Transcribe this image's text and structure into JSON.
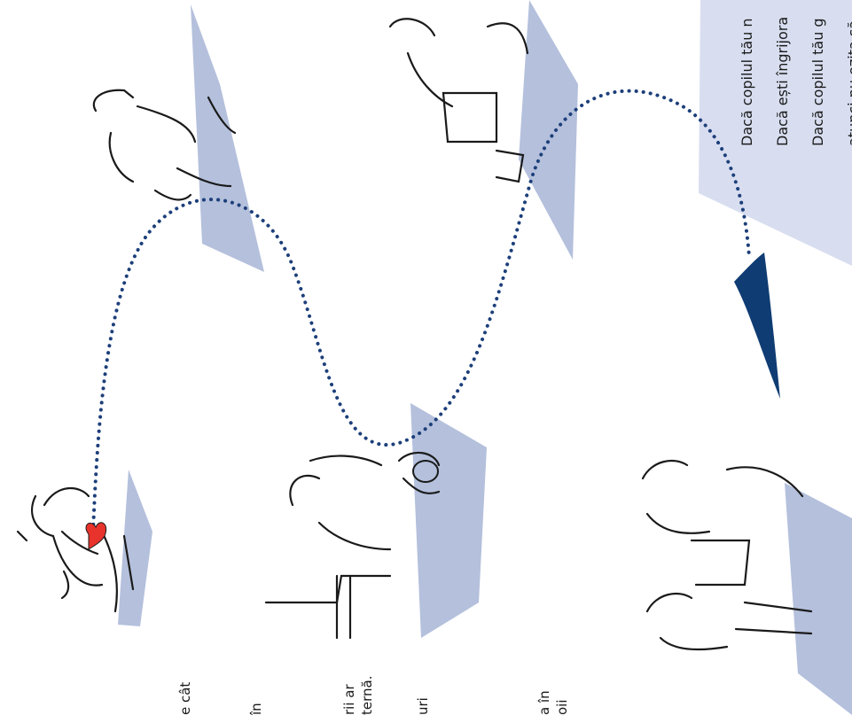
{
  "left_fragments": {
    "line1": "e cât",
    "line2": "în",
    "line3": "rii ar",
    "line4": "ternă.",
    "line5": "uri",
    "line6": "a în",
    "line7": "oii"
  },
  "callout": {
    "line1": "Dacă copilul tău n",
    "line2": "Dacă ești îngrijora",
    "line3": "Dacă copilul tău g",
    "line4": "atunci nu ezita să"
  },
  "colors": {
    "panel": "#b4c0dc",
    "callout_bg": "#d8def0",
    "dotted_path": "#1d3f7a",
    "arrow": "#0f3c73",
    "heart": "#e8332d",
    "ink": "#1a1a1a"
  }
}
